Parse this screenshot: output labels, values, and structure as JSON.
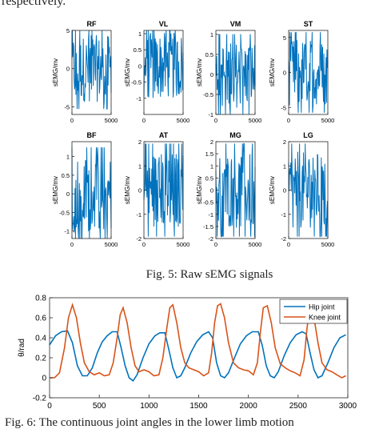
{
  "page_top_text": "respectively.",
  "colors": {
    "signal": "#0072BD",
    "hip": "#0072BD",
    "knee": "#D95319",
    "axis": "#262626"
  },
  "fig5": {
    "caption": "Fig. 5: Raw sEMG signals",
    "panels": [
      {
        "title": "RF",
        "ylabel": "sEMG/mv",
        "ylim": [
          -6,
          5
        ],
        "yticks": [
          -5,
          0,
          5
        ],
        "xlim": [
          0,
          5000
        ],
        "xticks": [
          0,
          5000
        ]
      },
      {
        "title": "VL",
        "ylabel": "sEMG/mv",
        "ylim": [
          -1.5,
          1.1
        ],
        "yticks": [
          -1,
          -0.5,
          0,
          0.5,
          1
        ],
        "xlim": [
          0,
          5000
        ],
        "xticks": [
          0,
          5000
        ]
      },
      {
        "title": "VM",
        "ylabel": "sEMG/mv",
        "ylim": [
          -1,
          1.1
        ],
        "yticks": [
          -1,
          -0.5,
          0,
          0.5,
          1
        ],
        "xlim": [
          0,
          5000
        ],
        "xticks": [
          0,
          5000
        ]
      },
      {
        "title": "ST",
        "ylabel": "sEMG/mv",
        "ylim": [
          -6,
          6
        ],
        "yticks": [
          -5,
          0,
          5
        ],
        "xlim": [
          0,
          5000
        ],
        "xticks": [
          0,
          5000
        ]
      },
      {
        "title": "BF",
        "ylabel": "sEMG/mv",
        "ylim": [
          -1.2,
          1.4
        ],
        "yticks": [
          -1,
          -0.5,
          0,
          0.5,
          1
        ],
        "xlim": [
          0,
          5000
        ],
        "xticks": [
          0,
          5000
        ]
      },
      {
        "title": "AT",
        "ylabel": "sEMG/mv",
        "ylim": [
          -2,
          2
        ],
        "yticks": [
          -2,
          -1,
          0,
          1,
          2
        ],
        "xlim": [
          0,
          5000
        ],
        "xticks": [
          0,
          5000
        ]
      },
      {
        "title": "MG",
        "ylabel": "sEMG/mv",
        "ylim": [
          -2,
          2
        ],
        "yticks": [
          -2,
          -1.5,
          -1,
          -0.5,
          0,
          0.5,
          1,
          1.5,
          2
        ],
        "xlim": [
          0,
          5000
        ],
        "xticks": [
          0,
          5000
        ]
      },
      {
        "title": "LG",
        "ylabel": "sEMG/mv",
        "ylim": [
          -2,
          2
        ],
        "yticks": [
          -2,
          -1,
          0,
          1,
          2
        ],
        "xlim": [
          0,
          5000
        ],
        "xticks": [
          0,
          5000
        ]
      }
    ]
  },
  "chart_data": [
    {
      "type": "line",
      "title": "",
      "xlabel": "",
      "ylabel": "θ/rad",
      "xlim": [
        0,
        3000
      ],
      "ylim": [
        -0.2,
        0.8
      ],
      "xticks": [
        0,
        500,
        1000,
        1500,
        2000,
        2500,
        3000
      ],
      "yticks": [
        -0.2,
        0,
        0.2,
        0.4,
        0.6,
        0.8
      ],
      "legend_position": "top-right",
      "series": [
        {
          "name": "Hip joint",
          "x": [
            0,
            60,
            120,
            180,
            230,
            280,
            330,
            380,
            430,
            480,
            530,
            580,
            630,
            680,
            720,
            760,
            800,
            840,
            880,
            940,
            1000,
            1060,
            1110,
            1160,
            1200,
            1240,
            1280,
            1320,
            1360,
            1420,
            1480,
            1540,
            1600,
            1640,
            1680,
            1720,
            1760,
            1800,
            1860,
            1920,
            1980,
            2040,
            2100,
            2140,
            2180,
            2220,
            2260,
            2300,
            2360,
            2420,
            2480,
            2540,
            2580,
            2620,
            2660,
            2700,
            2740,
            2800,
            2860,
            2920,
            2980
          ],
          "y": [
            0.33,
            0.42,
            0.46,
            0.47,
            0.35,
            0.12,
            0.02,
            0.02,
            0.1,
            0.25,
            0.36,
            0.42,
            0.46,
            0.46,
            0.3,
            0.12,
            0.0,
            -0.03,
            0.03,
            0.2,
            0.34,
            0.42,
            0.45,
            0.45,
            0.28,
            0.1,
            0.0,
            0.02,
            0.1,
            0.25,
            0.36,
            0.43,
            0.46,
            0.4,
            0.15,
            0.02,
            0.0,
            0.05,
            0.2,
            0.34,
            0.42,
            0.46,
            0.46,
            0.32,
            0.12,
            0.02,
            0.0,
            0.06,
            0.22,
            0.35,
            0.43,
            0.46,
            0.44,
            0.25,
            0.08,
            0.0,
            0.02,
            0.15,
            0.3,
            0.4,
            0.43
          ]
        },
        {
          "name": "Knee joint",
          "x": [
            0,
            50,
            100,
            150,
            190,
            230,
            270,
            310,
            350,
            400,
            450,
            500,
            550,
            600,
            640,
            680,
            710,
            740,
            780,
            820,
            860,
            900,
            950,
            1000,
            1050,
            1100,
            1140,
            1180,
            1210,
            1240,
            1280,
            1320,
            1360,
            1400,
            1450,
            1500,
            1550,
            1600,
            1630,
            1660,
            1690,
            1720,
            1760,
            1800,
            1850,
            1900,
            1950,
            2000,
            2050,
            2090,
            2120,
            2150,
            2190,
            2230,
            2270,
            2320,
            2370,
            2420,
            2470,
            2520,
            2560,
            2590,
            2620,
            2660,
            2700,
            2740,
            2790,
            2840,
            2890,
            2940,
            2980
          ],
          "y": [
            0.0,
            0.0,
            0.05,
            0.3,
            0.6,
            0.73,
            0.6,
            0.35,
            0.15,
            0.06,
            0.03,
            0.05,
            0.02,
            0.03,
            0.15,
            0.4,
            0.63,
            0.7,
            0.55,
            0.3,
            0.12,
            0.06,
            0.08,
            0.06,
            0.02,
            0.03,
            0.2,
            0.5,
            0.7,
            0.73,
            0.55,
            0.3,
            0.15,
            0.1,
            0.08,
            0.06,
            0.02,
            0.05,
            0.25,
            0.55,
            0.72,
            0.74,
            0.6,
            0.35,
            0.15,
            0.1,
            0.08,
            0.07,
            0.03,
            0.15,
            0.45,
            0.7,
            0.72,
            0.55,
            0.3,
            0.14,
            0.1,
            0.07,
            0.05,
            0.02,
            0.18,
            0.5,
            0.7,
            0.6,
            0.35,
            0.15,
            0.08,
            0.06,
            0.03,
            0.0,
            0.02
          ]
        }
      ]
    }
  ],
  "fig6": {
    "caption": "Fig. 6: The continuous joint angles in the lower limb motion"
  }
}
